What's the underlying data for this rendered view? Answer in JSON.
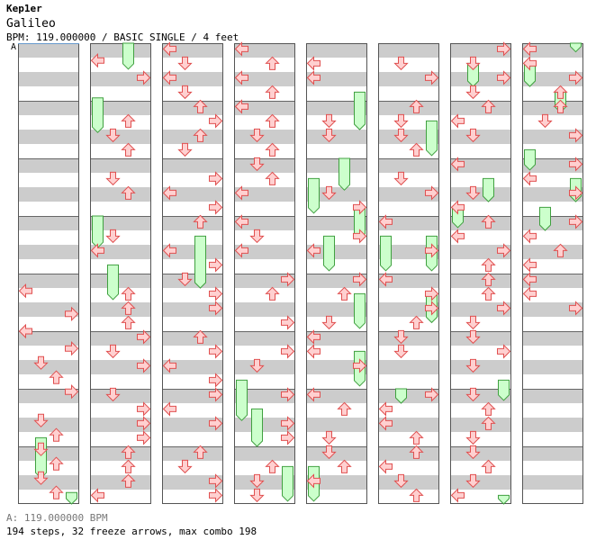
{
  "song": {
    "artist": "Kep1er",
    "title": "Galileo",
    "info": "BPM: 119.000000 / BASIC SINGLE / 4 feet",
    "segment_marker": "A",
    "bpm_legend": "A: 119.000000 BPM",
    "stats": "194 steps, 32 freeze arrows, max combo 198"
  },
  "chart_data": {
    "type": "step-chart",
    "columns": 8,
    "measures_per_column": 8,
    "lanes": [
      "left",
      "down",
      "up",
      "right"
    ],
    "colors": {
      "arrow_fill": "#ffd0d0",
      "arrow_stroke": "#e05050",
      "freeze_fill": "#ccffcc",
      "freeze_stroke": "#40a040",
      "stripe": "#cccccc"
    },
    "notes": [
      [
        0,
        4.3,
        0
      ],
      [
        0,
        4.7,
        3
      ],
      [
        0,
        5.0,
        0
      ],
      [
        0,
        5.3,
        3
      ],
      [
        0,
        5.55,
        1
      ],
      [
        0,
        5.8,
        2
      ],
      [
        0,
        6.05,
        3
      ],
      [
        0,
        6.55,
        1
      ],
      [
        0,
        6.8,
        2
      ],
      [
        0,
        7.05,
        1
      ],
      [
        0,
        7.3,
        2
      ],
      [
        0,
        7.55,
        1
      ],
      [
        0,
        7.8,
        2
      ],
      [
        1,
        0.3,
        0
      ],
      [
        1,
        0.6,
        3
      ],
      [
        1,
        1.35,
        2
      ],
      [
        1,
        1.6,
        1
      ],
      [
        1,
        1.85,
        2
      ],
      [
        1,
        2.35,
        1
      ],
      [
        1,
        2.6,
        2
      ],
      [
        1,
        3.35,
        1
      ],
      [
        1,
        3.6,
        0
      ],
      [
        1,
        4.35,
        2
      ],
      [
        1,
        4.6,
        2
      ],
      [
        1,
        4.85,
        2
      ],
      [
        1,
        5.1,
        3
      ],
      [
        1,
        5.35,
        1
      ],
      [
        1,
        5.6,
        3
      ],
      [
        1,
        6.1,
        1
      ],
      [
        1,
        6.35,
        3
      ],
      [
        1,
        6.6,
        3
      ],
      [
        1,
        6.85,
        3
      ],
      [
        1,
        7.1,
        2
      ],
      [
        1,
        7.35,
        2
      ],
      [
        1,
        7.6,
        2
      ],
      [
        1,
        7.85,
        0
      ],
      [
        2,
        0.1,
        0
      ],
      [
        2,
        0.35,
        1
      ],
      [
        2,
        0.6,
        0
      ],
      [
        2,
        0.85,
        1
      ],
      [
        2,
        1.1,
        2
      ],
      [
        2,
        1.35,
        3
      ],
      [
        2,
        1.6,
        2
      ],
      [
        2,
        1.85,
        1
      ],
      [
        2,
        2.35,
        3
      ],
      [
        2,
        2.6,
        0
      ],
      [
        2,
        2.85,
        3
      ],
      [
        2,
        3.1,
        2
      ],
      [
        2,
        3.6,
        0
      ],
      [
        2,
        3.85,
        3
      ],
      [
        2,
        4.1,
        1
      ],
      [
        2,
        4.35,
        3
      ],
      [
        2,
        4.6,
        3
      ],
      [
        2,
        5.1,
        2
      ],
      [
        2,
        5.35,
        3
      ],
      [
        2,
        5.6,
        0
      ],
      [
        2,
        5.85,
        3
      ],
      [
        2,
        6.1,
        3
      ],
      [
        2,
        6.35,
        0
      ],
      [
        2,
        6.6,
        3
      ],
      [
        2,
        7.1,
        2
      ],
      [
        2,
        7.35,
        1
      ],
      [
        2,
        7.6,
        3
      ],
      [
        2,
        7.85,
        3
      ],
      [
        3,
        0.1,
        0
      ],
      [
        3,
        0.35,
        2
      ],
      [
        3,
        0.6,
        0
      ],
      [
        3,
        0.85,
        2
      ],
      [
        3,
        1.1,
        0
      ],
      [
        3,
        1.35,
        2
      ],
      [
        3,
        1.6,
        1
      ],
      [
        3,
        1.85,
        2
      ],
      [
        3,
        2.1,
        1
      ],
      [
        3,
        2.35,
        2
      ],
      [
        3,
        2.6,
        0
      ],
      [
        3,
        3.1,
        0
      ],
      [
        3,
        3.35,
        1
      ],
      [
        3,
        3.6,
        0
      ],
      [
        3,
        4.1,
        3
      ],
      [
        3,
        4.35,
        2
      ],
      [
        3,
        4.85,
        3
      ],
      [
        3,
        5.35,
        3
      ],
      [
        3,
        5.6,
        1
      ],
      [
        3,
        6.1,
        3
      ],
      [
        3,
        6.6,
        3
      ],
      [
        3,
        6.85,
        3
      ],
      [
        3,
        7.35,
        2
      ],
      [
        3,
        7.6,
        1
      ],
      [
        3,
        7.85,
        1
      ],
      [
        4,
        0.35,
        0
      ],
      [
        4,
        0.6,
        0
      ],
      [
        4,
        1.35,
        1
      ],
      [
        4,
        1.6,
        1
      ],
      [
        4,
        2.6,
        1
      ],
      [
        4,
        2.85,
        3
      ],
      [
        4,
        3.35,
        3
      ],
      [
        4,
        3.6,
        0
      ],
      [
        4,
        4.1,
        3
      ],
      [
        4,
        4.35,
        2
      ],
      [
        4,
        4.85,
        1
      ],
      [
        4,
        5.1,
        0
      ],
      [
        4,
        5.35,
        0
      ],
      [
        4,
        5.6,
        3
      ],
      [
        4,
        6.1,
        0
      ],
      [
        4,
        6.35,
        2
      ],
      [
        4,
        6.85,
        1
      ],
      [
        4,
        7.1,
        1
      ],
      [
        4,
        7.35,
        2
      ],
      [
        4,
        7.6,
        0
      ],
      [
        5,
        0.35,
        1
      ],
      [
        5,
        0.6,
        3
      ],
      [
        5,
        1.1,
        2
      ],
      [
        5,
        1.35,
        1
      ],
      [
        5,
        1.6,
        1
      ],
      [
        5,
        1.85,
        2
      ],
      [
        5,
        2.35,
        1
      ],
      [
        5,
        2.6,
        3
      ],
      [
        5,
        3.1,
        0
      ],
      [
        5,
        3.6,
        3
      ],
      [
        5,
        4.1,
        0
      ],
      [
        5,
        4.35,
        3
      ],
      [
        5,
        4.6,
        3
      ],
      [
        5,
        4.85,
        2
      ],
      [
        5,
        5.1,
        1
      ],
      [
        5,
        5.35,
        1
      ],
      [
        5,
        6.1,
        3
      ],
      [
        5,
        6.35,
        0
      ],
      [
        5,
        6.6,
        0
      ],
      [
        5,
        6.85,
        2
      ],
      [
        5,
        7.1,
        2
      ],
      [
        5,
        7.35,
        0
      ],
      [
        5,
        7.6,
        1
      ],
      [
        5,
        7.85,
        2
      ],
      [
        6,
        0.1,
        3
      ],
      [
        6,
        0.35,
        1
      ],
      [
        6,
        0.6,
        3
      ],
      [
        6,
        0.85,
        1
      ],
      [
        6,
        1.1,
        2
      ],
      [
        6,
        1.35,
        0
      ],
      [
        6,
        1.6,
        1
      ],
      [
        6,
        2.1,
        0
      ],
      [
        6,
        2.6,
        1
      ],
      [
        6,
        2.85,
        0
      ],
      [
        6,
        3.1,
        2
      ],
      [
        6,
        3.35,
        0
      ],
      [
        6,
        3.6,
        3
      ],
      [
        6,
        3.85,
        2
      ],
      [
        6,
        4.1,
        2
      ],
      [
        6,
        4.35,
        2
      ],
      [
        6,
        4.6,
        3
      ],
      [
        6,
        4.85,
        1
      ],
      [
        6,
        5.1,
        1
      ],
      [
        6,
        5.35,
        3
      ],
      [
        6,
        5.6,
        1
      ],
      [
        6,
        6.1,
        1
      ],
      [
        6,
        6.35,
        2
      ],
      [
        6,
        6.6,
        2
      ],
      [
        6,
        6.85,
        1
      ],
      [
        6,
        7.1,
        1
      ],
      [
        6,
        7.35,
        2
      ],
      [
        6,
        7.6,
        1
      ],
      [
        6,
        7.85,
        0
      ],
      [
        7,
        0.1,
        0
      ],
      [
        7,
        0.35,
        0
      ],
      [
        7,
        0.6,
        3
      ],
      [
        7,
        0.85,
        2
      ],
      [
        7,
        1.1,
        2
      ],
      [
        7,
        1.35,
        1
      ],
      [
        7,
        1.6,
        3
      ],
      [
        7,
        2.1,
        3
      ],
      [
        7,
        2.35,
        0
      ],
      [
        7,
        2.6,
        3
      ],
      [
        7,
        3.1,
        3
      ],
      [
        7,
        3.35,
        0
      ],
      [
        7,
        3.6,
        2
      ],
      [
        7,
        3.85,
        0
      ],
      [
        7,
        4.1,
        0
      ],
      [
        7,
        4.35,
        0
      ],
      [
        7,
        4.6,
        3
      ]
    ],
    "freezes": [
      [
        0,
        6.85,
        7.55,
        1
      ],
      [
        0,
        7.8,
        8.0,
        3
      ],
      [
        1,
        0.0,
        0.45,
        2
      ],
      [
        1,
        0.95,
        1.55,
        0
      ],
      [
        1,
        3.0,
        3.55,
        0
      ],
      [
        1,
        3.85,
        4.45,
        1
      ],
      [
        2,
        3.35,
        4.25,
        2
      ],
      [
        3,
        5.85,
        6.55,
        0
      ],
      [
        3,
        6.35,
        7.0,
        1
      ],
      [
        3,
        7.35,
        7.95,
        3
      ],
      [
        4,
        0.85,
        1.5,
        3
      ],
      [
        4,
        2.0,
        2.55,
        2
      ],
      [
        4,
        2.35,
        2.95,
        0
      ],
      [
        4,
        2.85,
        3.4,
        3
      ],
      [
        4,
        3.35,
        3.95,
        1
      ],
      [
        4,
        4.35,
        4.95,
        3
      ],
      [
        4,
        5.35,
        5.95,
        3
      ],
      [
        4,
        7.35,
        7.95,
        0
      ],
      [
        5,
        1.35,
        1.95,
        3
      ],
      [
        5,
        3.35,
        3.95,
        0
      ],
      [
        5,
        3.35,
        3.95,
        3
      ],
      [
        5,
        4.35,
        4.85,
        3
      ],
      [
        5,
        6.0,
        6.25,
        1
      ],
      [
        6,
        0.35,
        0.75,
        1
      ],
      [
        6,
        2.35,
        2.75,
        2
      ],
      [
        6,
        2.85,
        3.2,
        0
      ],
      [
        6,
        5.85,
        6.2,
        3
      ],
      [
        6,
        7.85,
        8.0,
        3
      ],
      [
        7,
        0.0,
        0.15,
        3
      ],
      [
        7,
        0.35,
        0.75,
        0
      ],
      [
        7,
        0.85,
        1.2,
        2
      ],
      [
        7,
        1.85,
        2.2,
        0
      ],
      [
        7,
        2.35,
        2.75,
        3
      ],
      [
        7,
        2.85,
        3.25,
        1
      ]
    ]
  }
}
